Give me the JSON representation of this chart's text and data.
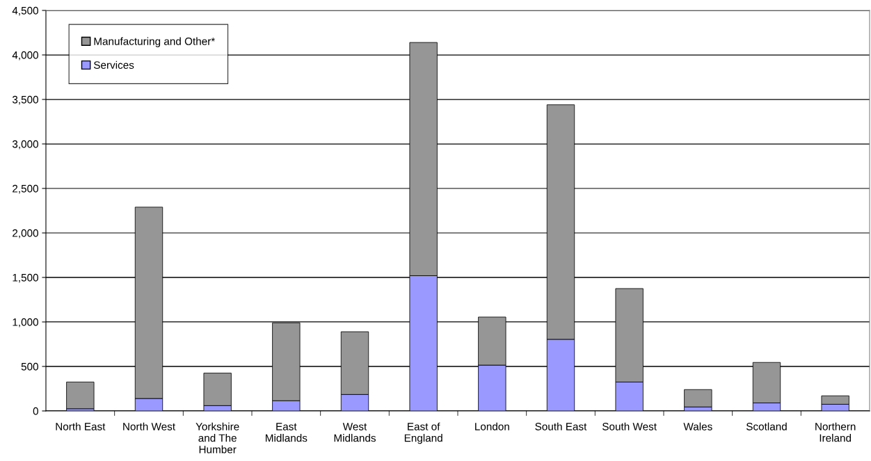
{
  "chart_data": {
    "type": "bar",
    "stacked": true,
    "categories": [
      "North East",
      "North West",
      "Yorkshire\nand The\nHumber",
      "East\nMidlands",
      "West\nMidlands",
      "East of\nEngland",
      "London",
      "South East",
      "South West",
      "Wales",
      "Scotland",
      "Northern\nIreland"
    ],
    "series": [
      {
        "name": "Services",
        "color": "#9999ff",
        "values": [
          25,
          140,
          60,
          115,
          185,
          1520,
          515,
          805,
          325,
          45,
          90,
          75
        ]
      },
      {
        "name": "Manufacturing and Other*",
        "color": "#969696",
        "values": [
          300,
          2150,
          365,
          875,
          705,
          2620,
          540,
          2635,
          1050,
          195,
          455,
          95
        ]
      }
    ],
    "ylim": [
      0,
      4500
    ],
    "yticks": [
      {
        "value": 0,
        "label": "0"
      },
      {
        "value": 500,
        "label": "500"
      },
      {
        "value": 1000,
        "label": "1,000"
      },
      {
        "value": 1500,
        "label": "1,500"
      },
      {
        "value": 2000,
        "label": "2,000"
      },
      {
        "value": 2500,
        "label": "2,500"
      },
      {
        "value": 3000,
        "label": "3,000"
      },
      {
        "value": 3500,
        "label": "3,500"
      },
      {
        "value": 4000,
        "label": "4,000"
      },
      {
        "value": 4500,
        "label": "4,500"
      }
    ],
    "grid": "y",
    "legend": "top left"
  }
}
